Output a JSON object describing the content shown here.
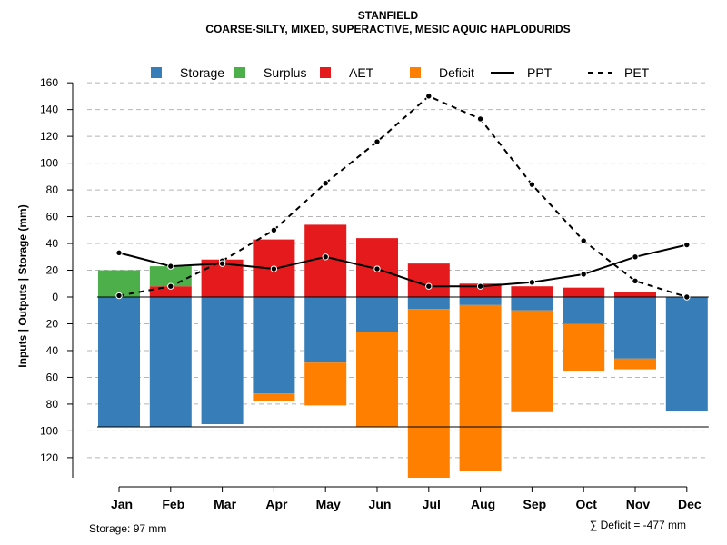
{
  "chart_data": {
    "type": "bar",
    "title": "STANFIELD",
    "subtitle": "COARSE-SILTY, MIXED, SUPERACTIVE, MESIC AQUIC HAPLODURIDS",
    "ylabel": "Inputs | Outputs | Storage    (mm)",
    "categories": [
      "Jan",
      "Feb",
      "Mar",
      "Apr",
      "May",
      "Jun",
      "Jul",
      "Aug",
      "Sep",
      "Oct",
      "Nov",
      "Dec"
    ],
    "ylim": [
      -135,
      160
    ],
    "y_ticks": [
      160,
      140,
      120,
      100,
      80,
      60,
      40,
      20,
      0,
      -20,
      -40,
      -60,
      -80,
      -100,
      -120
    ],
    "y_tick_labels": [
      "160",
      "140",
      "120",
      "100",
      "80",
      "60",
      "40",
      "20",
      "0",
      "20",
      "40",
      "60",
      "80",
      "100",
      "120"
    ],
    "grid": true,
    "series": [
      {
        "name": "Storage",
        "kind": "bar-below",
        "color": "#377EB8",
        "values": [
          97,
          97,
          95,
          72,
          49,
          26,
          9,
          6,
          10,
          20,
          46,
          85
        ]
      },
      {
        "name": "Surplus",
        "kind": "bar-above",
        "color": "#4DAF4A",
        "values": [
          20,
          15,
          0,
          0,
          0,
          0,
          0,
          0,
          0,
          0,
          0,
          0
        ]
      },
      {
        "name": "AET",
        "kind": "bar-above",
        "color": "#E41A1C",
        "values": [
          0,
          8,
          28,
          43,
          54,
          44,
          25,
          10,
          8,
          7,
          4,
          0
        ]
      },
      {
        "name": "Deficit",
        "kind": "bar-below-stack",
        "color": "#FF7F00",
        "values": [
          0,
          0,
          0,
          6,
          32,
          71,
          126,
          124,
          76,
          35,
          8,
          0
        ]
      },
      {
        "name": "PPT",
        "kind": "line-solid",
        "color": "#000000",
        "values": [
          33,
          23,
          25,
          21,
          30,
          21,
          8,
          8,
          11,
          17,
          30,
          39
        ]
      },
      {
        "name": "PET",
        "kind": "line-dashed",
        "color": "#000000",
        "values": [
          1,
          8,
          27,
          50,
          85,
          116,
          150,
          133,
          84,
          42,
          12,
          0
        ]
      }
    ],
    "storage_line": -97,
    "legend": {
      "position": "top",
      "entries": [
        {
          "label": "Storage",
          "symbol": "square",
          "color": "#377EB8"
        },
        {
          "label": "Surplus",
          "symbol": "square",
          "color": "#4DAF4A"
        },
        {
          "label": "AET",
          "symbol": "square",
          "color": "#E41A1C"
        },
        {
          "label": "Deficit",
          "symbol": "square",
          "color": "#FF7F00"
        },
        {
          "label": "PPT",
          "symbol": "solid-line",
          "color": "#000000"
        },
        {
          "label": "PET",
          "symbol": "dashed-line",
          "color": "#000000"
        }
      ]
    },
    "annotations": {
      "storage_note": "Storage: 97 mm",
      "deficit_note": "∑ Deficit = -477 mm"
    }
  }
}
